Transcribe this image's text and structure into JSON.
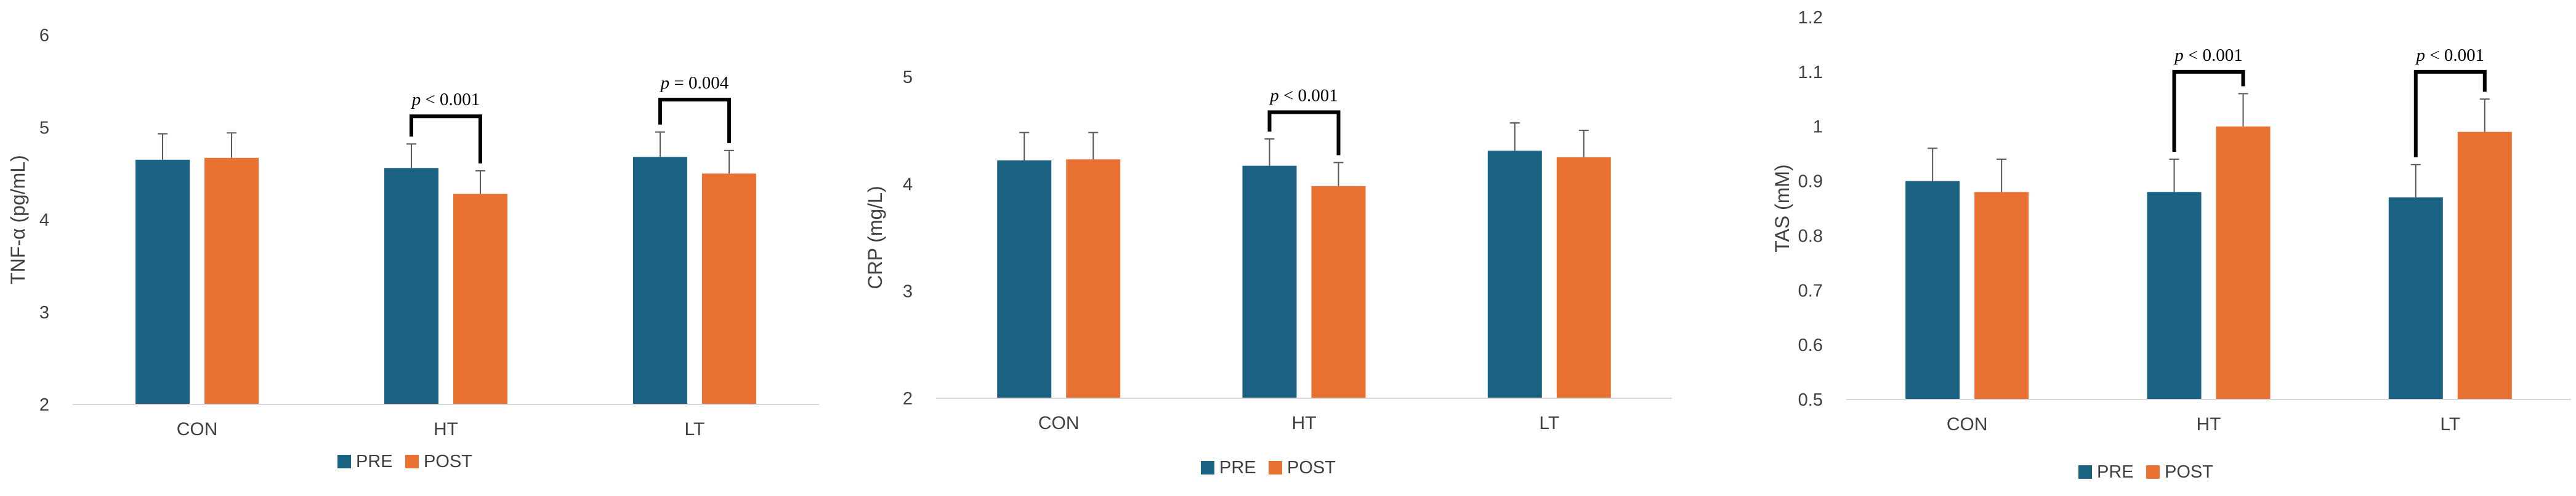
{
  "colors": {
    "PRE": "#1b6283",
    "POST": "#e97132",
    "axis": "#d9d9d9",
    "bracket": "#000000"
  },
  "chart_data": [
    {
      "type": "bar",
      "ylabel": "TNF-α (pg/mL)",
      "categories": [
        "CON",
        "HT",
        "LT"
      ],
      "series": [
        {
          "name": "PRE",
          "values": [
            4.65,
            4.56,
            4.68
          ],
          "errors": [
            0.28,
            0.26,
            0.27
          ]
        },
        {
          "name": "POST",
          "values": [
            4.67,
            4.28,
            4.5
          ],
          "errors": [
            0.27,
            0.25,
            0.25
          ]
        }
      ],
      "ylim": [
        2,
        6
      ],
      "yticks": [
        2,
        3,
        4,
        5,
        6
      ],
      "legend": "bottom",
      "grid": false,
      "annotations": [
        {
          "category": "HT",
          "p_prefix": "p",
          "text": "< 0.001",
          "bracket_top": 5.12
        },
        {
          "category": "LT",
          "p_prefix": "p",
          "text": "= 0.004",
          "bracket_top": 5.3
        }
      ]
    },
    {
      "type": "bar",
      "ylabel": "CRP (mg/L)",
      "categories": [
        "CON",
        "HT",
        "LT"
      ],
      "series": [
        {
          "name": "PRE",
          "values": [
            4.22,
            4.17,
            4.31
          ],
          "errors": [
            0.26,
            0.25,
            0.26
          ]
        },
        {
          "name": "POST",
          "values": [
            4.23,
            3.98,
            4.25
          ],
          "errors": [
            0.25,
            0.22,
            0.25
          ]
        }
      ],
      "ylim": [
        2,
        5
      ],
      "yticks": [
        2,
        3,
        4,
        5
      ],
      "legend": "bottom",
      "grid": false,
      "annotations": [
        {
          "category": "HT",
          "p_prefix": "p",
          "text": "< 0.001",
          "bracket_top": 4.67
        }
      ]
    },
    {
      "type": "bar",
      "ylabel": "TAS (mM)",
      "categories": [
        "CON",
        "HT",
        "LT"
      ],
      "series": [
        {
          "name": "PRE",
          "values": [
            0.9,
            0.88,
            0.87
          ],
          "errors": [
            0.06,
            0.06,
            0.06
          ]
        },
        {
          "name": "POST",
          "values": [
            0.88,
            1.0,
            0.99
          ],
          "errors": [
            0.06,
            0.06,
            0.06
          ]
        }
      ],
      "ylim": [
        0.5,
        1.2
      ],
      "yticks": [
        0.5,
        0.6,
        0.7,
        0.8,
        0.9,
        1,
        1.1,
        1.2
      ],
      "legend": "bottom",
      "grid": false,
      "annotations": [
        {
          "category": "HT",
          "p_prefix": "p",
          "text": "< 0.001",
          "bracket_top": 1.1
        },
        {
          "category": "LT",
          "p_prefix": "p",
          "text": "< 0.001",
          "bracket_top": 1.1
        }
      ]
    }
  ]
}
